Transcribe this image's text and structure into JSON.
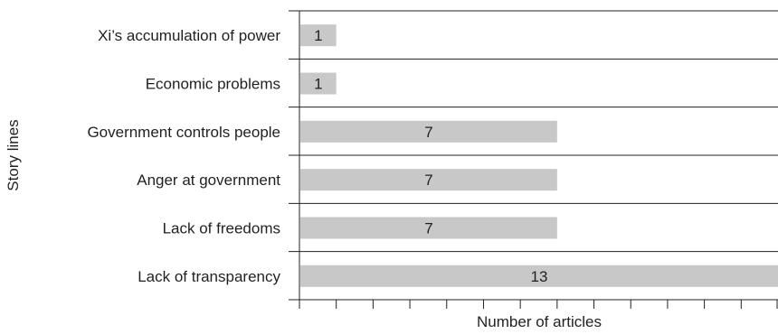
{
  "chart_data": {
    "type": "bar",
    "orientation": "horizontal",
    "categories": [
      "Xi’s accumulation of power",
      "Economic problems",
      "Government controls people",
      "Anger at government",
      "Lack of freedoms",
      "Lack of transparency"
    ],
    "values": [
      1,
      1,
      7,
      7,
      7,
      13
    ],
    "data_labels": [
      "1",
      "1",
      "7",
      "7",
      "7",
      "13"
    ],
    "title": "",
    "xlabel": "Number of articles",
    "ylabel": "Story lines",
    "xlim": [
      0,
      13
    ],
    "x_ticks_count": 13,
    "grid": "horizontal separators between categories",
    "legend": "none",
    "bar_color": "#c8c8c8",
    "line_color": "#231f20"
  }
}
